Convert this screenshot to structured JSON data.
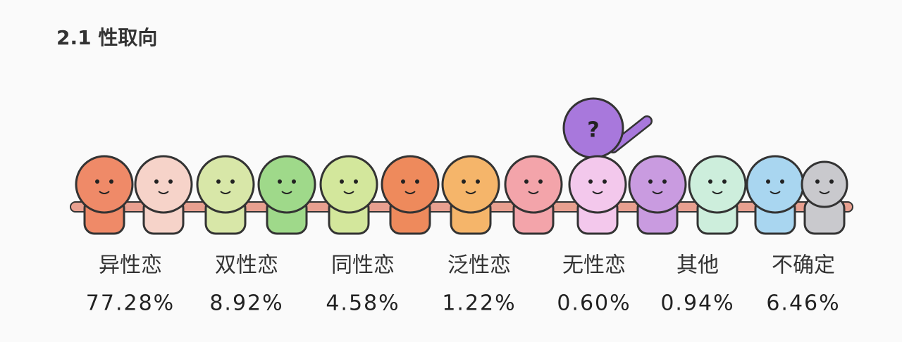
{
  "header": {
    "title": "2.1 性取向"
  },
  "items": [
    {
      "label": "异性恋",
      "value": "77.28%"
    },
    {
      "label": "双性恋",
      "value": "8.92%"
    },
    {
      "label": "同性恋",
      "value": "4.58%"
    },
    {
      "label": "泛性恋",
      "value": "1.22%"
    },
    {
      "label": "无性恋",
      "value": "0.60%"
    },
    {
      "label": "其他",
      "value": "0.94%"
    },
    {
      "label": "不确定",
      "value": "6.46%"
    }
  ]
}
